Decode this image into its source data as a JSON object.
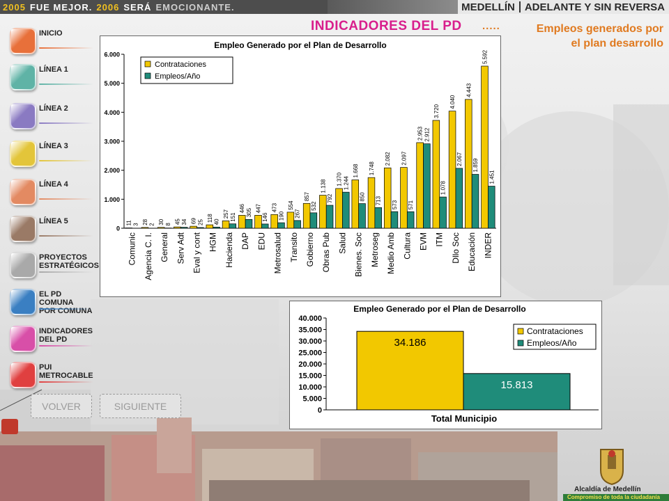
{
  "banner": {
    "left_2005": "2005",
    "left_mejor": "FUE MEJOR.",
    "left_2006": "2006",
    "left_sera": "SERÁ",
    "left_emocionante": "EMOCIONANTE.",
    "right_city": "MEDELLÍN",
    "right_slogan": "ADELANTE Y SIN REVERSA"
  },
  "header": {
    "title": "INDICADORES DEL PD",
    "dots": ".....",
    "subtitle_line1": "Empleos generados por",
    "subtitle_line2": "el plan desarrollo"
  },
  "menu": {
    "items": [
      {
        "label": "INICIO",
        "label2": "",
        "color": "#e8703a",
        "underline": "#e8703a"
      },
      {
        "label": "LÍNEA 1",
        "label2": "",
        "color": "#5fb3a6",
        "underline": "#5fb3a6"
      },
      {
        "label": "LÍNEA 2",
        "label2": "",
        "color": "#8a7ac2",
        "underline": "#8a7ac2"
      },
      {
        "label": "LÍNEA 3",
        "label2": "",
        "color": "#e3c53a",
        "underline": "#e3c53a"
      },
      {
        "label": "LÍNEA 4",
        "label2": "",
        "color": "#e38a62",
        "underline": "#e38a62"
      },
      {
        "label": "LÍNEA 5",
        "label2": "",
        "color": "#9a7a66",
        "underline": "#9a7a66"
      },
      {
        "label": "PROYECTOS",
        "label2": "ESTRATÉGICOS",
        "color": "#a9a9a9",
        "underline": "#a9a9a9"
      },
      {
        "label": "EL PD COMUNA",
        "label2": "POR COMUNA",
        "color": "#3a7fc2",
        "underline": "#3a7fc2"
      },
      {
        "label": "INDICADORES",
        "label2": "DEL PD",
        "color": "#d84fa8",
        "underline": "#d84fa8"
      },
      {
        "label": "PUI",
        "label2": "METROCABLE",
        "color": "#e04040",
        "underline": "#e04040"
      }
    ]
  },
  "nav": {
    "back_label": "VOLVER",
    "next_label": "SIGUIENTE"
  },
  "footer": {
    "name": "Alcaldía de Medellín",
    "tagline": "Compromiso de toda la ciudadanía"
  },
  "chart_data": [
    {
      "type": "bar",
      "title": "Empleo Generado por el Plan de Desarrollo",
      "categories": [
        "Comunic",
        "Agencia C. I.",
        "General",
        "Serv Adt",
        "Eval y cont",
        "HGM",
        "Hacienda",
        "DAP",
        "EDU",
        "Metrosalud",
        "Transito",
        "Gobierno",
        "Obras Pub",
        "Salud",
        "Bienes. Soc",
        "Metroseg",
        "Medio Amb",
        "Cultura",
        "EVM",
        "ITM",
        "Dllo Soc",
        "Educación",
        "INDER"
      ],
      "series": [
        {
          "name": "Contrataciones",
          "values": [
            11,
            28,
            30,
            45,
            69,
            118,
            257,
            446,
            447,
            473,
            554,
            857,
            1138,
            1370,
            1668,
            1748,
            2082,
            2097,
            2953,
            3720,
            4040,
            4443,
            5592
          ],
          "labels": [
            "11",
            "28",
            "30",
            "45",
            "69",
            "118",
            "257",
            "446",
            "447",
            "473",
            "554",
            "857",
            "1.138",
            "1.370",
            "1.668",
            "1.748",
            "2.082",
            "2.097",
            "2.953",
            "3.720",
            "4.040",
            "4.443",
            "5.592"
          ]
        },
        {
          "name": "Empleos/Año",
          "values": [
            3,
            2,
            8,
            34,
            25,
            40,
            151,
            305,
            146,
            190,
            267,
            532,
            792,
            1244,
            850,
            713,
            573,
            571,
            2912,
            1078,
            2067,
            1859,
            1451
          ],
          "labels": [
            "3",
            "2",
            "8",
            "34",
            "25",
            "40",
            "151",
            "305",
            "146",
            "190",
            "267",
            "532",
            "792",
            "1.244",
            "850",
            "713",
            "573",
            "571",
            "2.912",
            "1.078",
            "2.067",
            "1.859",
            "1.451"
          ]
        }
      ],
      "yticks": [
        "0",
        "1.000",
        "2.000",
        "3.000",
        "4.000",
        "5.000",
        "6.000"
      ],
      "ylim": [
        0,
        6000
      ],
      "legend": "top-left",
      "grid": false
    },
    {
      "type": "bar",
      "title": "Empleo Generado por el Plan de Desarrollo",
      "xlabel": "Total Municipio",
      "categories": [
        "Total Municipio"
      ],
      "series": [
        {
          "name": "Contrataciones",
          "values": [
            34186
          ],
          "labels": [
            "34.186"
          ]
        },
        {
          "name": "Empleos/Año",
          "values": [
            15813
          ],
          "labels": [
            "15.813"
          ]
        }
      ],
      "yticks": [
        "0",
        "5.000",
        "10.000",
        "15.000",
        "20.000",
        "25.000",
        "30.000",
        "35.000",
        "40.000"
      ],
      "ylim": [
        0,
        40000
      ],
      "legend": "right",
      "grid": false
    }
  ],
  "colors": {
    "contrataciones": "#f2c800",
    "empleos": "#1f8c7a"
  }
}
